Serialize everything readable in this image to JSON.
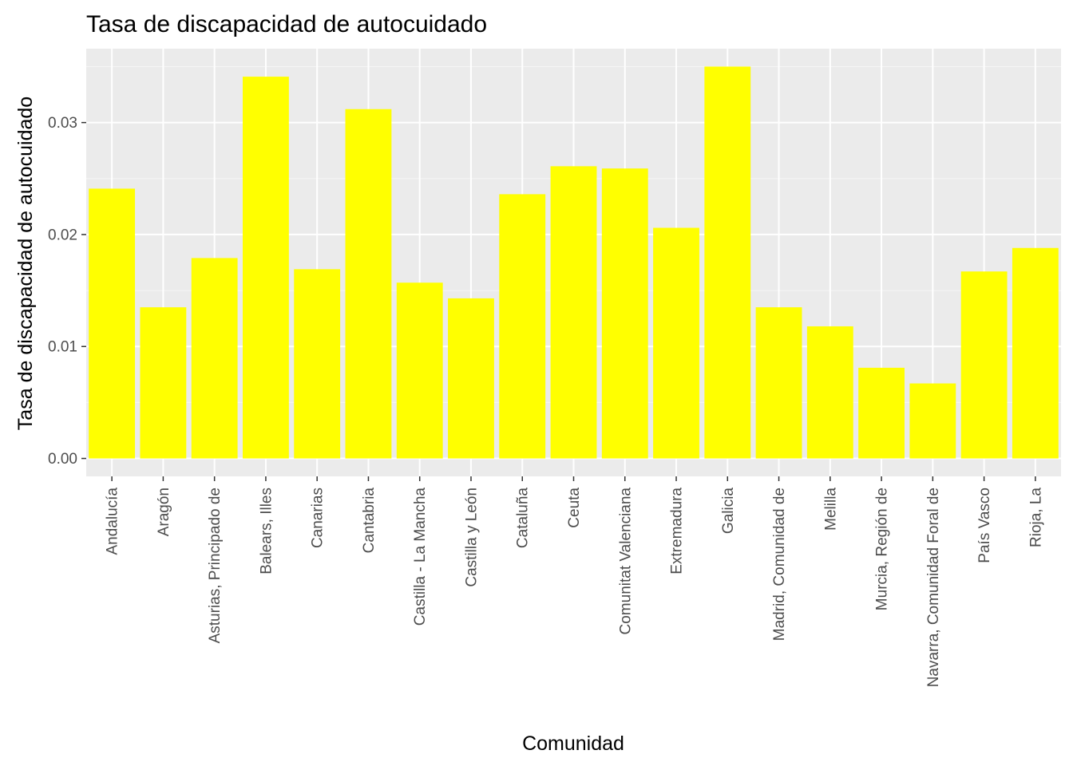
{
  "chart_data": {
    "type": "bar",
    "title": "Tasa de discapacidad de autocuidado",
    "xlabel": "Comunidad",
    "ylabel": "Tasa de discapacidad de autocuidado",
    "categories": [
      "Andalucía",
      "Aragón",
      "Asturias, Principado de",
      "Balears, Illes",
      "Canarias",
      "Cantabria",
      "Castilla - La Mancha",
      "Castilla y León",
      "Cataluña",
      "Ceuta",
      "Comunitat Valenciana",
      "Extremadura",
      "Galicia",
      "Madrid, Comunidad de",
      "Melilla",
      "Murcia, Región de",
      "Navarra, Comunidad Foral de",
      "País Vasco",
      "Rioja, La"
    ],
    "values": [
      0.0241,
      0.0135,
      0.0179,
      0.0341,
      0.0169,
      0.0312,
      0.0157,
      0.0143,
      0.0236,
      0.0261,
      0.0259,
      0.0206,
      0.035,
      0.0135,
      0.0118,
      0.0081,
      0.0067,
      0.0167,
      0.0188
    ],
    "yticks": [
      "0.00",
      "0.01",
      "0.02",
      "0.03"
    ],
    "ylim": [
      -0.0016,
      0.0366
    ],
    "grid": true,
    "colors": {
      "bar": "#FFFF00",
      "panel": "#EBEBEB",
      "grid_major": "#FFFFFF",
      "grid_minor": "#F5F5F5"
    }
  }
}
